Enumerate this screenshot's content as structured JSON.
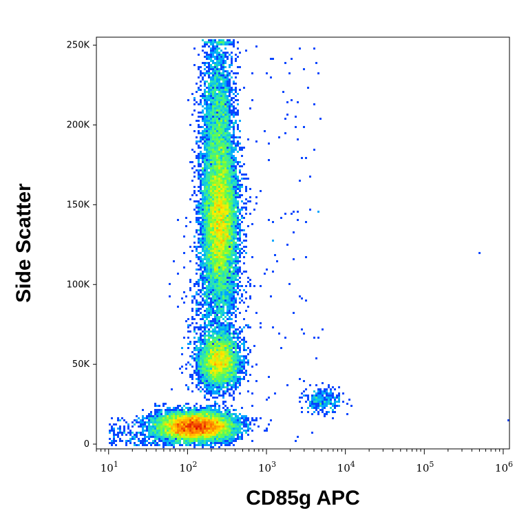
{
  "chart_data": {
    "type": "scatter",
    "subtype": "flow-cytometry-density-dot-plot",
    "xlabel": "CD85g APC",
    "ylabel": "Side Scatter",
    "x_scale": "log",
    "xlim": [
      7,
      1200000
    ],
    "ylim": [
      -3000,
      255000
    ],
    "x_ticks": [
      {
        "value": 10,
        "base": "10",
        "exp": "1"
      },
      {
        "value": 100,
        "base": "10",
        "exp": "2"
      },
      {
        "value": 1000,
        "base": "10",
        "exp": "3"
      },
      {
        "value": 10000,
        "base": "10",
        "exp": "4"
      },
      {
        "value": 100000,
        "base": "10",
        "exp": "5"
      },
      {
        "value": 1000000,
        "base": "10",
        "exp": "6"
      }
    ],
    "y_ticks": [
      {
        "value": 0,
        "label": "0"
      },
      {
        "value": 50000,
        "label": "50K"
      },
      {
        "value": 100000,
        "label": "100K"
      },
      {
        "value": 150000,
        "label": "150K"
      },
      {
        "value": 200000,
        "label": "200K"
      },
      {
        "value": 250000,
        "label": "250K"
      }
    ],
    "grid": false,
    "colormap": [
      "#0000a8",
      "#0a2cff",
      "#00b4ff",
      "#2ce6b4",
      "#66ff44",
      "#ffee00",
      "#ff8800",
      "#dd0000"
    ],
    "populations": [
      {
        "x_center": 130,
        "y_center": 11000,
        "relative_density": 1.0
      },
      {
        "x_center": 250,
        "y_center": 52000,
        "relative_density": 0.4
      },
      {
        "x_center": 260,
        "y_center": 140000,
        "relative_density": 0.7
      },
      {
        "x_center": 5000,
        "y_center": 27000,
        "relative_density": 0.2
      },
      {
        "x_center": 500000,
        "y_center": 120000,
        "relative_density": 0.01
      }
    ]
  }
}
